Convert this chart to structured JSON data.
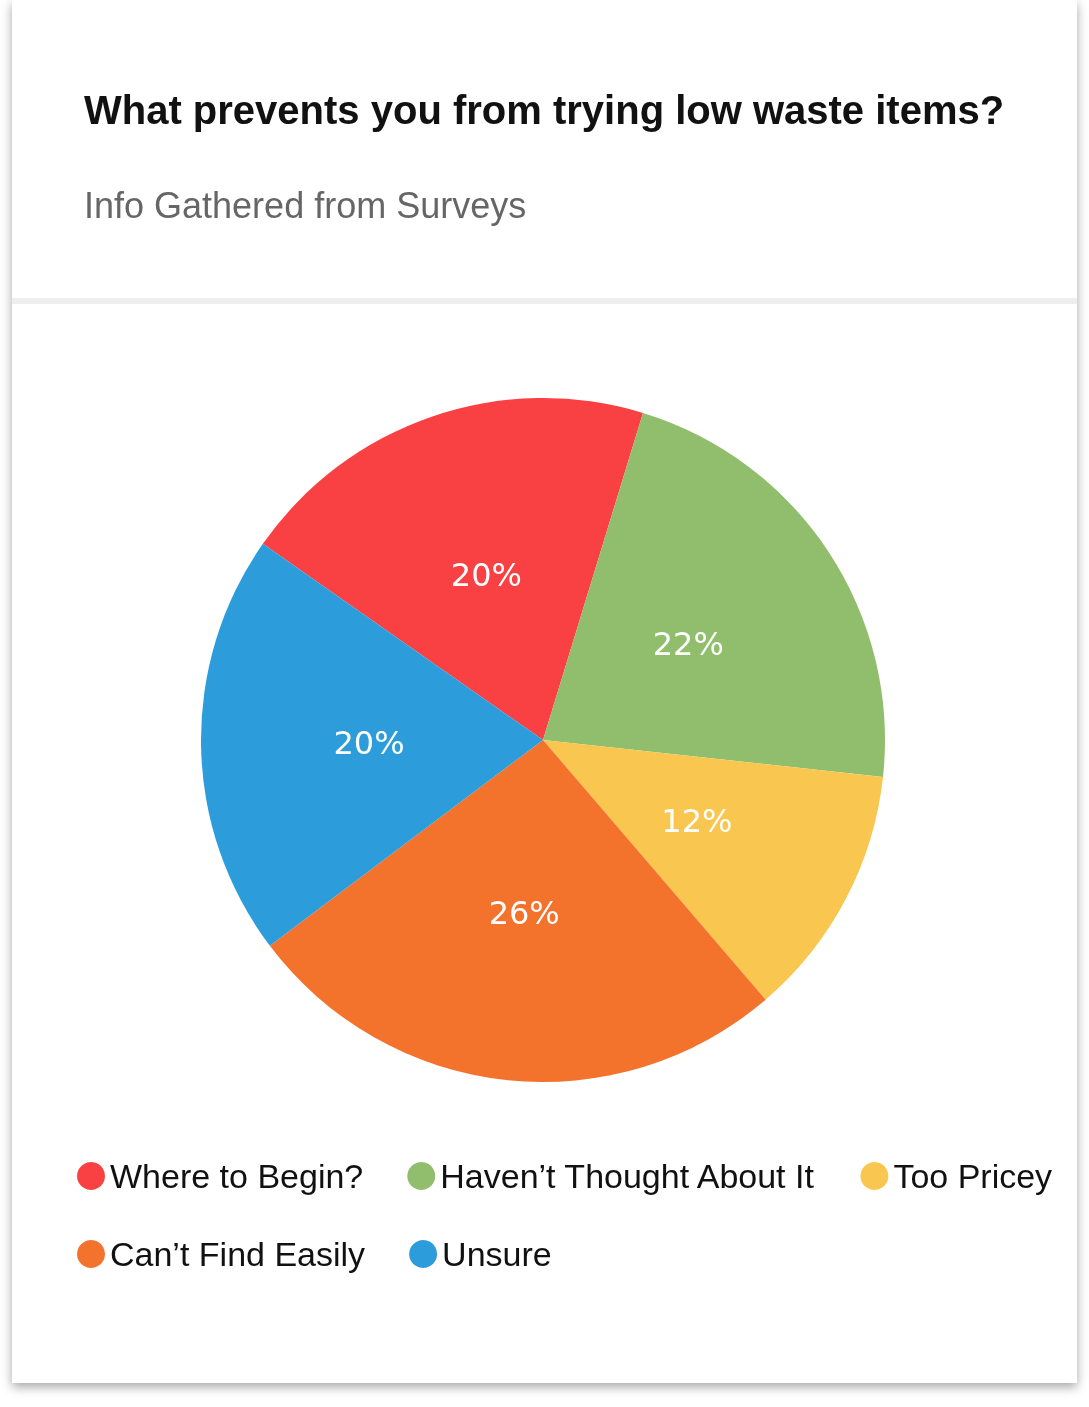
{
  "chart_data": {
    "type": "pie",
    "title": "What prevents you from trying low waste items?",
    "subtitle": "Info Gathered from Surveys",
    "categories": [
      "Where to Begin?",
      "Haven’t Thought About It",
      "Too Pricey",
      "Can’t Find Easily",
      "Unsure"
    ],
    "values": [
      20,
      22,
      12,
      26,
      20
    ],
    "colors": [
      "#f94144",
      "#90be6d",
      "#f9c74f",
      "#f3722c",
      "#2d9cdb"
    ],
    "value_labels": [
      "20%",
      "22%",
      "12%",
      "26%",
      "20%"
    ],
    "legend": "bottom"
  }
}
